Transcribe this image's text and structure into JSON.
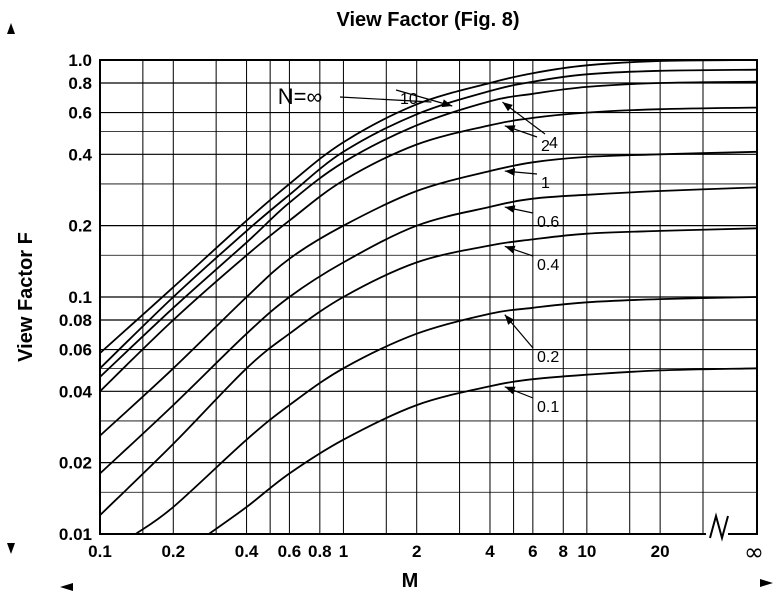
{
  "chart_data": {
    "type": "line",
    "title": "View Factor (Fig. 8)",
    "xlabel": "M",
    "ylabel": "View Factor F",
    "x_scale": "log",
    "y_scale": "log",
    "xlim": [
      0.1,
      50
    ],
    "ylim": [
      0.01,
      1.0
    ],
    "x_ticks": [
      {
        "value": 0.1,
        "label": "0.1"
      },
      {
        "value": 0.2,
        "label": "0.2"
      },
      {
        "value": 0.4,
        "label": "0.4"
      },
      {
        "value": 0.6,
        "label": "0.6"
      },
      {
        "value": 0.8,
        "label": "0.8"
      },
      {
        "value": 1,
        "label": "1"
      },
      {
        "value": 2,
        "label": "2"
      },
      {
        "value": 4,
        "label": "4"
      },
      {
        "value": 6,
        "label": "6"
      },
      {
        "value": 8,
        "label": "8"
      },
      {
        "value": 10,
        "label": "10"
      },
      {
        "value": 20,
        "label": "20"
      }
    ],
    "x_infinity_label": "∞",
    "y_ticks": [
      {
        "value": 0.01,
        "label": "0.01"
      },
      {
        "value": 0.02,
        "label": "0.02"
      },
      {
        "value": 0.04,
        "label": "0.04"
      },
      {
        "value": 0.06,
        "label": "0.06"
      },
      {
        "value": 0.08,
        "label": "0.08"
      },
      {
        "value": 0.1,
        "label": "0.1"
      },
      {
        "value": 0.2,
        "label": "0.2"
      },
      {
        "value": 0.4,
        "label": "0.4"
      },
      {
        "value": 0.6,
        "label": "0.6"
      },
      {
        "value": 0.8,
        "label": "0.8"
      },
      {
        "value": 1.0,
        "label": "1.0"
      }
    ],
    "grid": true,
    "curve_parameter": "N",
    "n_infinity_label": "N=∞",
    "series": [
      {
        "name": "∞",
        "x": [
          0.1,
          0.2,
          0.4,
          0.6,
          1,
          2,
          4,
          6,
          10,
          20,
          50
        ],
        "y": [
          0.058,
          0.11,
          0.21,
          0.3,
          0.45,
          0.65,
          0.8,
          0.88,
          0.95,
          0.99,
          1.0
        ]
      },
      {
        "name": "10",
        "x": [
          0.1,
          0.2,
          0.4,
          0.6,
          1,
          2,
          4,
          6,
          10,
          20,
          50
        ],
        "y": [
          0.05,
          0.1,
          0.19,
          0.27,
          0.41,
          0.59,
          0.74,
          0.81,
          0.87,
          0.9,
          0.91
        ]
      },
      {
        "name": "4",
        "x": [
          0.1,
          0.2,
          0.4,
          0.6,
          1,
          2,
          4,
          6,
          10,
          20,
          50
        ],
        "y": [
          0.046,
          0.09,
          0.17,
          0.25,
          0.37,
          0.53,
          0.67,
          0.72,
          0.77,
          0.8,
          0.81
        ]
      },
      {
        "name": "2",
        "x": [
          0.1,
          0.2,
          0.4,
          0.6,
          1,
          2,
          4,
          6,
          10,
          20,
          50
        ],
        "y": [
          0.04,
          0.08,
          0.15,
          0.21,
          0.31,
          0.44,
          0.53,
          0.57,
          0.6,
          0.62,
          0.63
        ]
      },
      {
        "name": "1",
        "x": [
          0.1,
          0.2,
          0.4,
          0.6,
          1,
          2,
          4,
          6,
          10,
          20,
          50
        ],
        "y": [
          0.026,
          0.05,
          0.1,
          0.145,
          0.2,
          0.28,
          0.34,
          0.37,
          0.39,
          0.4,
          0.41
        ]
      },
      {
        "name": "0.6",
        "x": [
          0.1,
          0.2,
          0.4,
          0.6,
          1,
          2,
          4,
          6,
          10,
          20,
          50
        ],
        "y": [
          0.018,
          0.035,
          0.07,
          0.1,
          0.14,
          0.2,
          0.24,
          0.26,
          0.27,
          0.28,
          0.29
        ]
      },
      {
        "name": "0.4",
        "x": [
          0.1,
          0.2,
          0.4,
          0.6,
          1,
          2,
          4,
          6,
          10,
          20,
          50
        ],
        "y": [
          0.012,
          0.024,
          0.05,
          0.07,
          0.1,
          0.14,
          0.165,
          0.175,
          0.185,
          0.19,
          0.195
        ]
      },
      {
        "name": "0.2",
        "x": [
          0.14,
          0.2,
          0.4,
          0.6,
          1,
          2,
          4,
          6,
          10,
          20,
          50
        ],
        "y": [
          0.01,
          0.013,
          0.025,
          0.035,
          0.05,
          0.07,
          0.085,
          0.09,
          0.095,
          0.098,
          0.1
        ]
      },
      {
        "name": "0.1",
        "x": [
          0.28,
          0.4,
          0.6,
          1,
          2,
          4,
          6,
          10,
          20,
          50
        ],
        "y": [
          0.01,
          0.013,
          0.018,
          0.025,
          0.035,
          0.042,
          0.045,
          0.047,
          0.049,
          0.05
        ]
      }
    ]
  }
}
